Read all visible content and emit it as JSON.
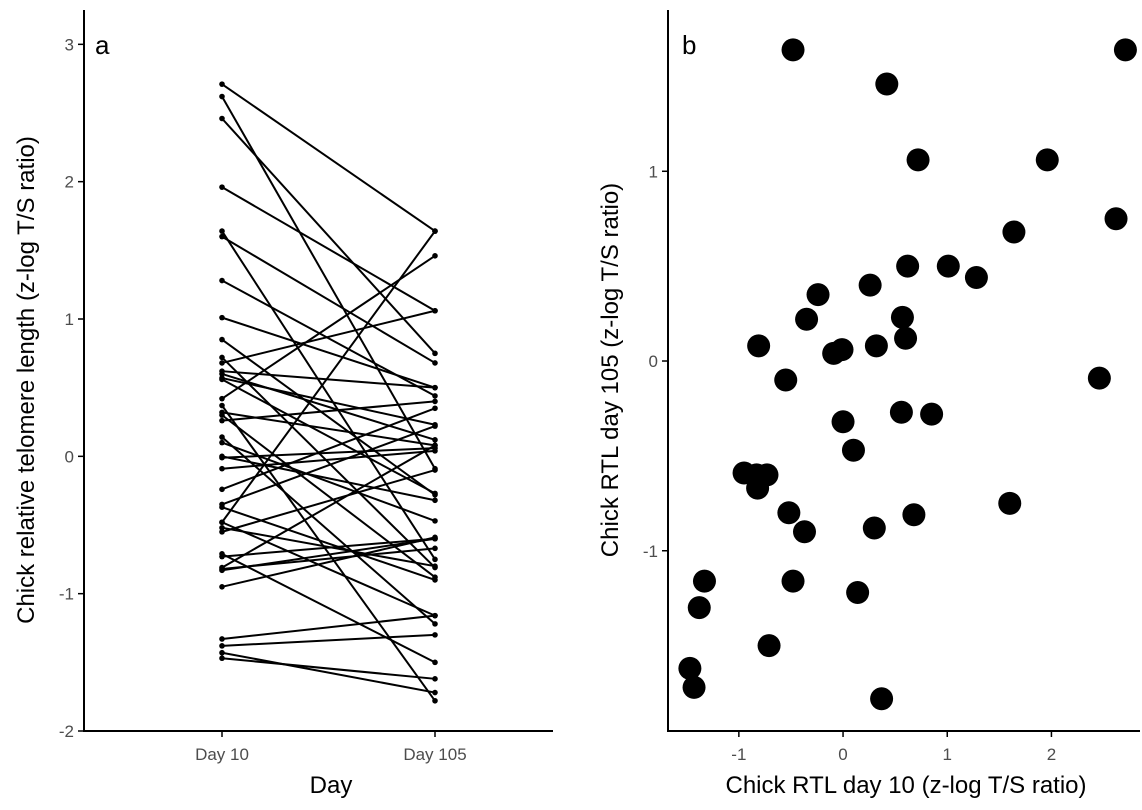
{
  "chart_data": [
    {
      "type": "line",
      "panel_label": "a",
      "xlabel": "Day",
      "ylabel": "Chick relative telomere length (z-log T/S ratio)",
      "categories": [
        "Day 10",
        "Day 105"
      ],
      "ylim": [
        -2,
        3.25
      ],
      "yticks": [
        -2,
        -1,
        0,
        1,
        2,
        3
      ],
      "ytick_labels": [
        "-2",
        "-1",
        "0",
        "1",
        "2",
        "3"
      ],
      "grid": false,
      "pairs": [
        [
          2.71,
          1.64
        ],
        [
          2.62,
          -0.09
        ],
        [
          2.46,
          0.75
        ],
        [
          1.96,
          1.06
        ],
        [
          1.64,
          -0.75
        ],
        [
          1.6,
          0.68
        ],
        [
          1.28,
          0.44
        ],
        [
          1.01,
          0.5
        ],
        [
          0.85,
          -0.28
        ],
        [
          0.72,
          -0.81
        ],
        [
          0.68,
          1.06
        ],
        [
          0.62,
          0.5
        ],
        [
          0.6,
          0.12
        ],
        [
          0.56,
          -0.27
        ],
        [
          0.57,
          0.23
        ],
        [
          0.42,
          1.46
        ],
        [
          0.37,
          -1.78
        ],
        [
          0.32,
          0.08
        ],
        [
          0.3,
          -0.88
        ],
        [
          0.26,
          0.4
        ],
        [
          0.14,
          -1.22
        ],
        [
          0.1,
          -0.47
        ],
        [
          0.0,
          -0.32
        ],
        [
          -0.01,
          0.06
        ],
        [
          -0.09,
          0.04
        ],
        [
          -0.24,
          0.35
        ],
        [
          -0.35,
          0.22
        ],
        [
          -0.37,
          -0.9
        ],
        [
          -0.48,
          1.64
        ],
        [
          -0.48,
          -1.16
        ],
        [
          -0.52,
          -0.8
        ],
        [
          -0.55,
          -0.1
        ],
        [
          -0.71,
          -1.5
        ],
        [
          -0.73,
          -0.6
        ],
        [
          -0.81,
          0.08
        ],
        [
          -0.82,
          -0.67
        ],
        [
          -0.83,
          -0.6
        ],
        [
          -0.95,
          -0.59
        ],
        [
          -1.33,
          -1.16
        ],
        [
          -1.38,
          -1.3
        ],
        [
          -1.43,
          -1.72
        ],
        [
          -1.47,
          -1.62
        ]
      ]
    },
    {
      "type": "scatter",
      "panel_label": "b",
      "xlabel": "Chick RTL day 10 (z-log T/S ratio)",
      "ylabel": "Chick RTL day 105 (z-log T/S ratio)",
      "xlim": [
        -1.68,
        2.85
      ],
      "ylim": [
        -1.95,
        1.85
      ],
      "xticks": [
        -1,
        0,
        1,
        2
      ],
      "xtick_labels": [
        "-1",
        "0",
        "1",
        "2"
      ],
      "yticks": [
        -1,
        0,
        1
      ],
      "ytick_labels": [
        "-1",
        "0",
        "1"
      ],
      "grid": false,
      "points": [
        [
          2.71,
          1.64
        ],
        [
          2.62,
          0.75
        ],
        [
          2.46,
          -0.09
        ],
        [
          1.96,
          1.06
        ],
        [
          1.64,
          0.68
        ],
        [
          1.6,
          -0.75
        ],
        [
          1.28,
          0.44
        ],
        [
          1.01,
          0.5
        ],
        [
          0.85,
          -0.28
        ],
        [
          0.72,
          1.06
        ],
        [
          0.68,
          -0.81
        ],
        [
          0.62,
          0.5
        ],
        [
          0.6,
          0.12
        ],
        [
          0.56,
          -0.27
        ],
        [
          0.57,
          0.23
        ],
        [
          0.42,
          1.46
        ],
        [
          0.37,
          -1.78
        ],
        [
          0.32,
          0.08
        ],
        [
          0.3,
          -0.88
        ],
        [
          0.26,
          0.4
        ],
        [
          0.14,
          -1.22
        ],
        [
          0.1,
          -0.47
        ],
        [
          0.0,
          -0.32
        ],
        [
          -0.01,
          0.06
        ],
        [
          -0.09,
          0.04
        ],
        [
          -0.24,
          0.35
        ],
        [
          -0.35,
          0.22
        ],
        [
          -0.37,
          -0.9
        ],
        [
          -0.48,
          1.64
        ],
        [
          -0.48,
          -1.16
        ],
        [
          -0.52,
          -0.8
        ],
        [
          -0.55,
          -0.1
        ],
        [
          -0.71,
          -1.5
        ],
        [
          -0.73,
          -0.6
        ],
        [
          -0.81,
          0.08
        ],
        [
          -0.82,
          -0.67
        ],
        [
          -0.83,
          -0.6
        ],
        [
          -0.95,
          -0.59
        ],
        [
          -1.33,
          -1.16
        ],
        [
          -1.38,
          -1.3
        ],
        [
          -1.43,
          -1.72
        ],
        [
          -1.47,
          -1.62
        ]
      ]
    }
  ]
}
